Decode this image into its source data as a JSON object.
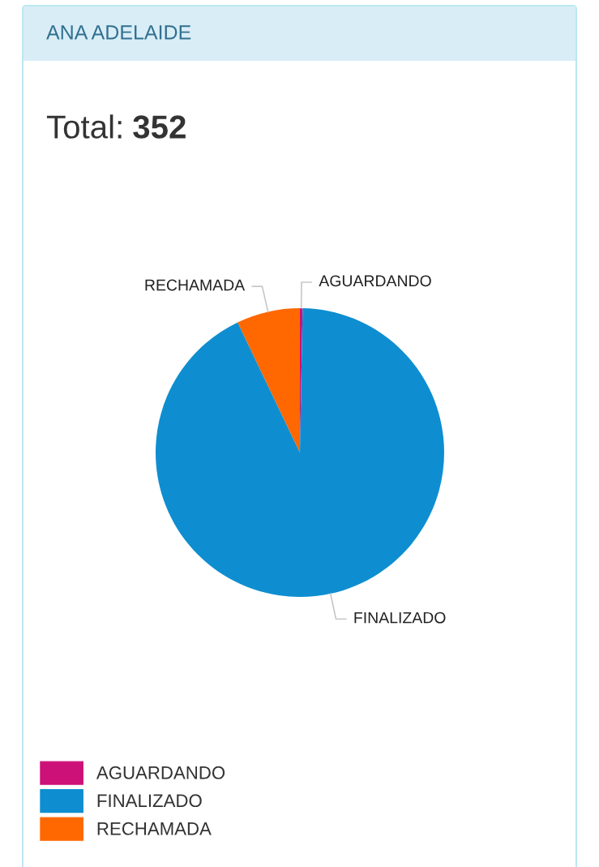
{
  "chart_data": {
    "type": "pie",
    "title": "ANA ADELAIDE",
    "subtitle": "Total: 352",
    "categories": [
      "AGUARDANDO",
      "FINALIZADO",
      "RECHAMADA"
    ],
    "values": [
      0.3,
      92.6,
      7.1
    ],
    "colors": [
      "#cc1178",
      "#0e8ed0",
      "#ff6700"
    ],
    "legend": "bottom left"
  }
}
